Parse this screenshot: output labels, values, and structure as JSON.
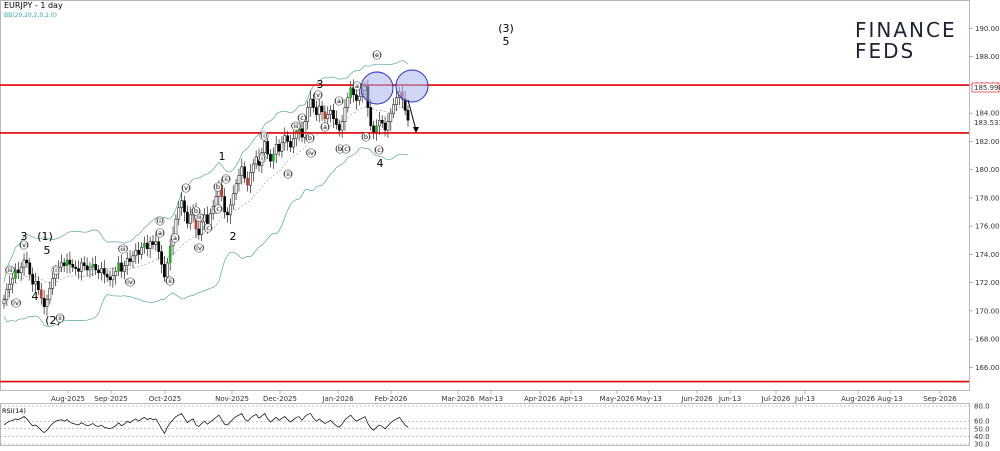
{
  "chart_data": {
    "type": "candlestick",
    "title": "EURJPY - 1 day",
    "indicator_label": "BB(20,20,2,0,2.0)",
    "current_price": "185.990",
    "price_marker_2": "183.531",
    "y_ticks": [
      "190.000",
      "188.000",
      "186.000",
      "184.000",
      "182.000",
      "180.000",
      "178.000",
      "176.000",
      "174.000",
      "172.000",
      "170.000",
      "168.000",
      "166.000"
    ],
    "ylim": [
      164.4,
      191.8
    ],
    "x_ticks": [
      "Aug-2025",
      "Sep-2025",
      "Oct-2025",
      "Nov-2025",
      "Dec-2025",
      "Jan-2026",
      "Feb-2026",
      "Mar-2026",
      "Mar-13",
      "Apr-2026",
      "Apr-13",
      "May-2026",
      "May-13",
      "Jun-2026",
      "Jun-13",
      "Jul-2026",
      "Jul-13",
      "Aug-2026",
      "Aug-13",
      "Sep-2026"
    ],
    "resistance_level": 185.99,
    "support_levels": [
      182.6,
      165.0
    ],
    "close_series": [
      170.8,
      171.5,
      171.9,
      172.3,
      172.9,
      172.7,
      173.1,
      173.6,
      173.4,
      172.6,
      171.9,
      172.1,
      171.5,
      170.9,
      170.3,
      170.8,
      171.6,
      172.3,
      172.9,
      173.1,
      173.4,
      173.2,
      173.6,
      173.3,
      173.1,
      173.0,
      172.8,
      173.4,
      173.2,
      172.9,
      173.1,
      173.3,
      172.9,
      172.7,
      173.0,
      172.6,
      172.4,
      172.2,
      172.5,
      172.8,
      173.4,
      172.8,
      173.2,
      173.7,
      173.5,
      173.9,
      174.3,
      174.0,
      174.5,
      174.8,
      174.4,
      174.9,
      174.7,
      174.9,
      174.2,
      173.3,
      172.4,
      173.4,
      174.6,
      175.4,
      176.5,
      177.3,
      177.8,
      177.0,
      176.2,
      176.8,
      177.2,
      175.8,
      175.4,
      176.3,
      176.8,
      176.1,
      176.9,
      177.4,
      178.1,
      178.9,
      178.1,
      177.0,
      176.8,
      177.5,
      178.3,
      179.0,
      179.6,
      180.2,
      179.4,
      178.9,
      179.8,
      180.4,
      180.9,
      180.3,
      181.2,
      182.0,
      181.1,
      180.6,
      181.1,
      181.8,
      181.3,
      181.9,
      182.4,
      182.0,
      181.6,
      182.2,
      182.7,
      182.9,
      182.3,
      183.4,
      184.4,
      185.0,
      184.4,
      183.9,
      184.5,
      184.1,
      183.6,
      183.9,
      184.2,
      183.6,
      183.2,
      182.8,
      183.4,
      184.4,
      185.1,
      185.8,
      185.3,
      184.9,
      185.2,
      185.6,
      185.9,
      184.4,
      183.1,
      182.6,
      183.1,
      183.5,
      183.3,
      182.8,
      183.4,
      184.0,
      184.6,
      185.1,
      185.5,
      185.0,
      184.2,
      183.5
    ],
    "wave_labels_major": [
      "3",
      "(1)",
      "5",
      "4",
      "(2)",
      "1",
      "2",
      "3",
      "4",
      "(3)",
      "5"
    ],
    "wave_labels_minor": [
      "(v)",
      "(iii)",
      "(iv)",
      "(i)",
      "(ii)",
      "(iii)",
      "(iv)",
      "(i)",
      "(ii)",
      "(a)",
      "(b)",
      "(c)",
      "(i)",
      "(ii)",
      "(iii)",
      "(iv)",
      "(v)",
      "(a)",
      "(b)",
      "(c)",
      "(i)",
      "(ii)",
      "(iii)",
      "(iv)",
      "(v)",
      "(a)",
      "(b)",
      "(c)",
      "(a)",
      "(b)",
      "(c)",
      "(a)",
      "(b)",
      "(c)",
      "(e)"
    ],
    "rsi": {
      "label": "RSI(14)",
      "ticks": [
        "80.0",
        "60.0",
        "50.0",
        "40.0",
        "30.0"
      ],
      "ylim": [
        30,
        80
      ],
      "values": [
        55,
        58,
        60,
        61,
        63,
        62,
        64,
        66,
        63,
        58,
        54,
        55,
        52,
        48,
        45,
        48,
        53,
        57,
        60,
        61,
        62,
        60,
        62,
        59,
        57,
        56,
        55,
        58,
        56,
        54,
        55,
        57,
        54,
        53,
        55,
        52,
        51,
        50,
        52,
        54,
        58,
        54,
        56,
        60,
        58,
        61,
        63,
        60,
        63,
        65,
        62,
        64,
        62,
        63,
        57,
        50,
        44,
        52,
        58,
        62,
        66,
        68,
        70,
        64,
        58,
        61,
        63,
        55,
        53,
        57,
        60,
        56,
        59,
        62,
        65,
        68,
        62,
        56,
        55,
        59,
        63,
        66,
        68,
        70,
        63,
        60,
        64,
        67,
        69,
        64,
        67,
        70,
        63,
        59,
        62,
        65,
        61,
        64,
        66,
        62,
        59,
        62,
        65,
        66,
        61,
        66,
        69,
        70,
        64,
        60,
        63,
        60,
        57,
        59,
        61,
        57,
        54,
        52,
        56,
        62,
        65,
        68,
        63,
        60,
        62,
        64,
        66,
        57,
        51,
        48,
        52,
        55,
        53,
        50,
        54,
        58,
        61,
        63,
        65,
        60,
        55,
        52
      ]
    }
  },
  "logo": {
    "line1": "FINANCE",
    "line2": "FEDS",
    "brand_color": "#1b2430"
  },
  "colors": {
    "bull": "#2aa52a",
    "bear": "#c0392b",
    "candle": "#000000",
    "band": "#5aa89a",
    "level": "#e00000",
    "circle_fill": "#aab4ee",
    "circle_stroke": "#2d2dcc",
    "rsi_line": "#000000"
  }
}
